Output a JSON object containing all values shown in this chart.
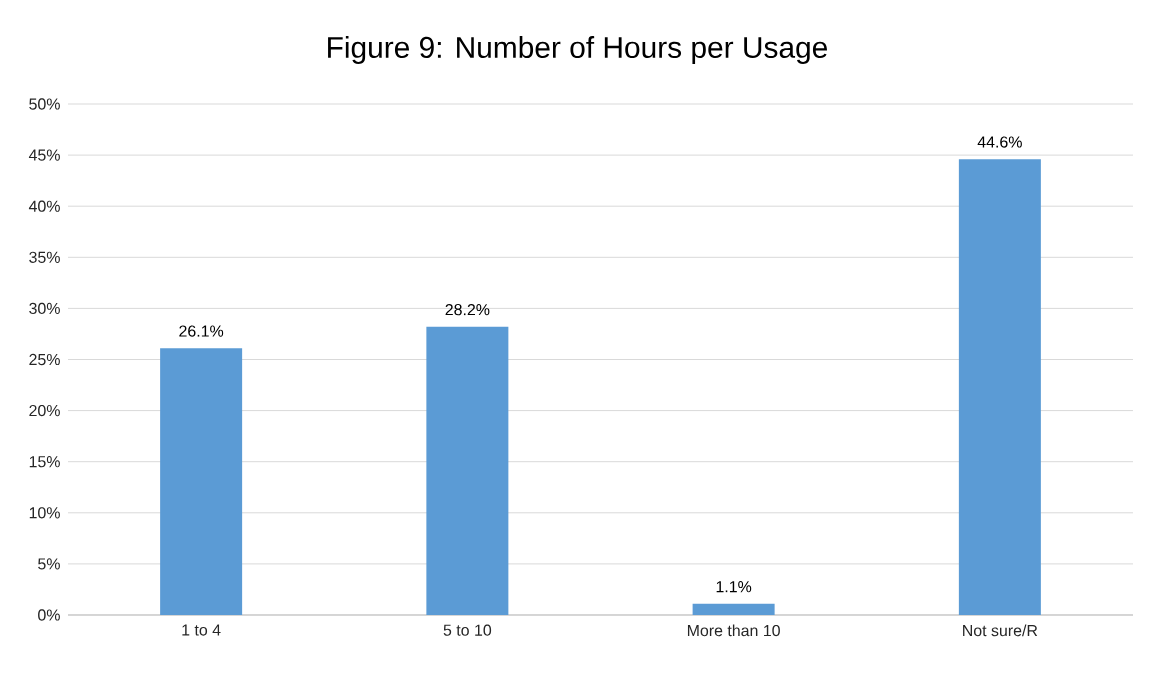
{
  "chart_data": {
    "type": "bar",
    "title": "Figure 9: Number of Hours per Usage",
    "categories": [
      "1 to 4",
      "5 to 10",
      "More than 10",
      "Not sure/R"
    ],
    "values": [
      26.1,
      28.2,
      1.1,
      44.6
    ],
    "value_labels": [
      "26.1%",
      "28.2%",
      "1.1%",
      "44.6%"
    ],
    "color": "#5b9bd5",
    "ylim": [
      0,
      50
    ],
    "yticks": [
      {
        "value": 0,
        "label": "0%"
      },
      {
        "value": 5,
        "label": "5%"
      },
      {
        "value": 10,
        "label": "10%"
      },
      {
        "value": 15,
        "label": "15%"
      },
      {
        "value": 20,
        "label": "20%"
      },
      {
        "value": 25,
        "label": "25%"
      },
      {
        "value": 30,
        "label": "30%"
      },
      {
        "value": 35,
        "label": "35%"
      },
      {
        "value": 40,
        "label": "40%"
      },
      {
        "value": 45,
        "label": "45%"
      },
      {
        "value": 50,
        "label": "50%"
      }
    ],
    "grid": "y"
  }
}
